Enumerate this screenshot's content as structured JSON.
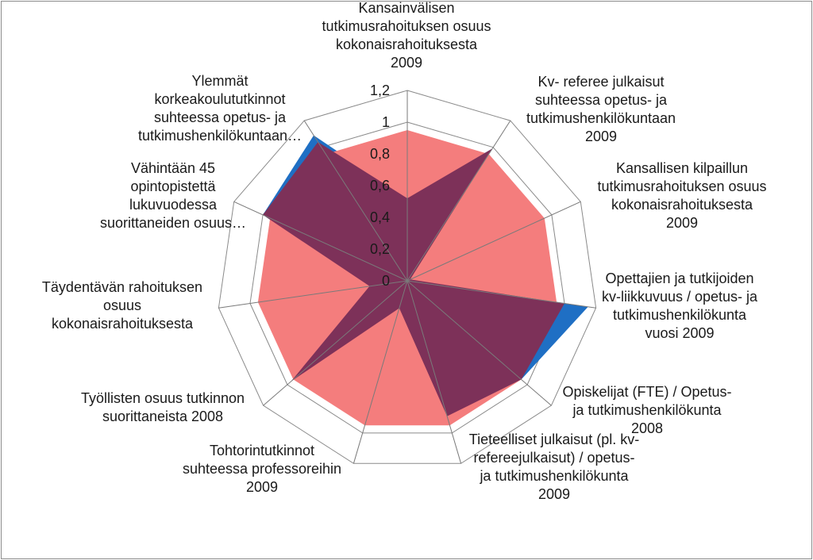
{
  "chart_data": {
    "type": "radar",
    "title": "",
    "r_range": [
      0,
      1.2
    ],
    "r_ticks": [
      "0",
      "0,2",
      "0,4",
      "0,6",
      "0,8",
      "1",
      "1,2"
    ],
    "grid": true,
    "legend": "none",
    "categories": [
      "Kansainvälisen tutkimusrahoituksen osuus kokonaisrahoituksesta 2009",
      "Kv- referee julkaisut suhteessa opetus- ja tutkimushenkilökuntaan 2009",
      "Kansallisen kilpaillun tutkimusrahoituksen osuus kokonaisrahoituksesta 2009",
      "Opettajien ja tutkijoiden kv-liikkuvuus / opetus- ja tutkimushenkilökunta vuosi 2009",
      "Opiskelijat (FTE) / Opetus- ja tutkimushenkilökunta 2008",
      "Tieteelliset julkaisut (pl. kv-refereejulkaisut) / opetus- ja tutkimushenkilökunta 2009",
      "Tohtorintutkinnot suhteessa professoreihin 2009",
      "Työllisten osuus tutkinnon suorittaneista 2008",
      "Täydentävän rahoituksen osuus kokonaisrahoituksesta",
      "Vähintään 45 opintopistettä lukuvuodessa suorittaneiden osuus…",
      "Ylemmät korkeakoulututkinnot suhteessa opetus- ja tutkimushenkilökuntaan…"
    ],
    "category_lines": [
      [
        "Kansainvälisen",
        "tutkimusrahoituksen osuus",
        "kokonaisrahoituksesta",
        "2009"
      ],
      [
        "Kv- referee  julkaisut",
        "suhteessa opetus- ja",
        "tutkimushenkilökuntaan",
        "2009"
      ],
      [
        "Kansallisen kilpaillun",
        "tutkimusrahoituksen osuus",
        "kokonaisrahoituksesta",
        "2009"
      ],
      [
        "Opettajien ja tutkijoiden",
        "kv-liikkuvuus / opetus- ja",
        "tutkimushenkilökunta",
        "vuosi 2009"
      ],
      [
        "Opiskelijat (FTE) / Opetus-",
        "ja tutkimushenkilökunta",
        "2008"
      ],
      [
        "Tieteelliset julkaisut (pl. kv-",
        "refereejulkaisut) / opetus-",
        "ja tutkimushenkilökunta",
        "2009"
      ],
      [
        "Tohtorintutkinnot",
        "suhteessa professoreihin",
        "2009"
      ],
      [
        "Työllisten osuus tutkinnon",
        "suorittaneista 2008"
      ],
      [
        "Täydentävän rahoituksen",
        "osuus",
        "kokonaisrahoituksesta"
      ],
      [
        "Vähintään 45",
        "opintopistettä",
        "lukuvuodessa",
        "suorittaneiden osuus…"
      ],
      [
        "Ylemmät",
        "korkeakoulututkinnot",
        "suhteessa opetus- ja",
        "tutkimushenkilökuntaan…"
      ]
    ],
    "series": [
      {
        "color": "#1f6fc4",
        "values": [
          0.52,
          0.99,
          0.02,
          1.15,
          0.95,
          0.89,
          0.18,
          0.97,
          0.24,
          1.0,
          1.09
        ]
      },
      {
        "color": "#f47d7d",
        "values": [
          0.95,
          0.95,
          0.95,
          0.95,
          0.95,
          0.95,
          0.95,
          0.95,
          0.95,
          0.95,
          0.95
        ]
      },
      {
        "color": "#7d3159",
        "values": [
          0.52,
          0.99,
          0.02,
          1.0,
          0.95,
          0.89,
          0.18,
          0.97,
          0.24,
          1.0,
          1.04
        ]
      }
    ]
  }
}
